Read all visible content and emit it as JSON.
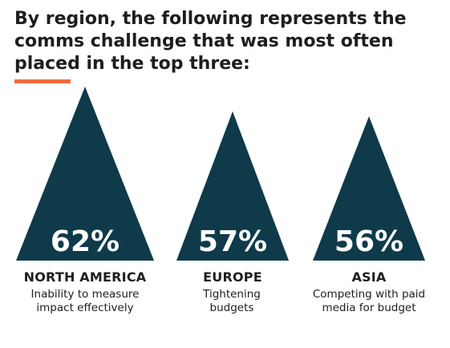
{
  "title": "By region, the following represents the comms challenge that was most often placed in the top three:",
  "colors": {
    "accent": "#f26a3d",
    "triangle": "#0e3a4a",
    "text": "#1e1e1e",
    "value_text": "#ffffff"
  },
  "chart_data": {
    "type": "bar",
    "mark": "triangle",
    "categories": [
      "NORTH AMERICA",
      "EUROPE",
      "ASIA"
    ],
    "values": [
      62,
      57,
      56
    ],
    "value_labels": [
      "62%",
      "57%",
      "56%"
    ],
    "descriptions": [
      "Inability to measure impact effectively",
      "Tightening budgets",
      "Competing with paid media for budget"
    ],
    "title": "By region, the following represents the comms challenge that was most often placed in the top three:",
    "unit": "%"
  }
}
